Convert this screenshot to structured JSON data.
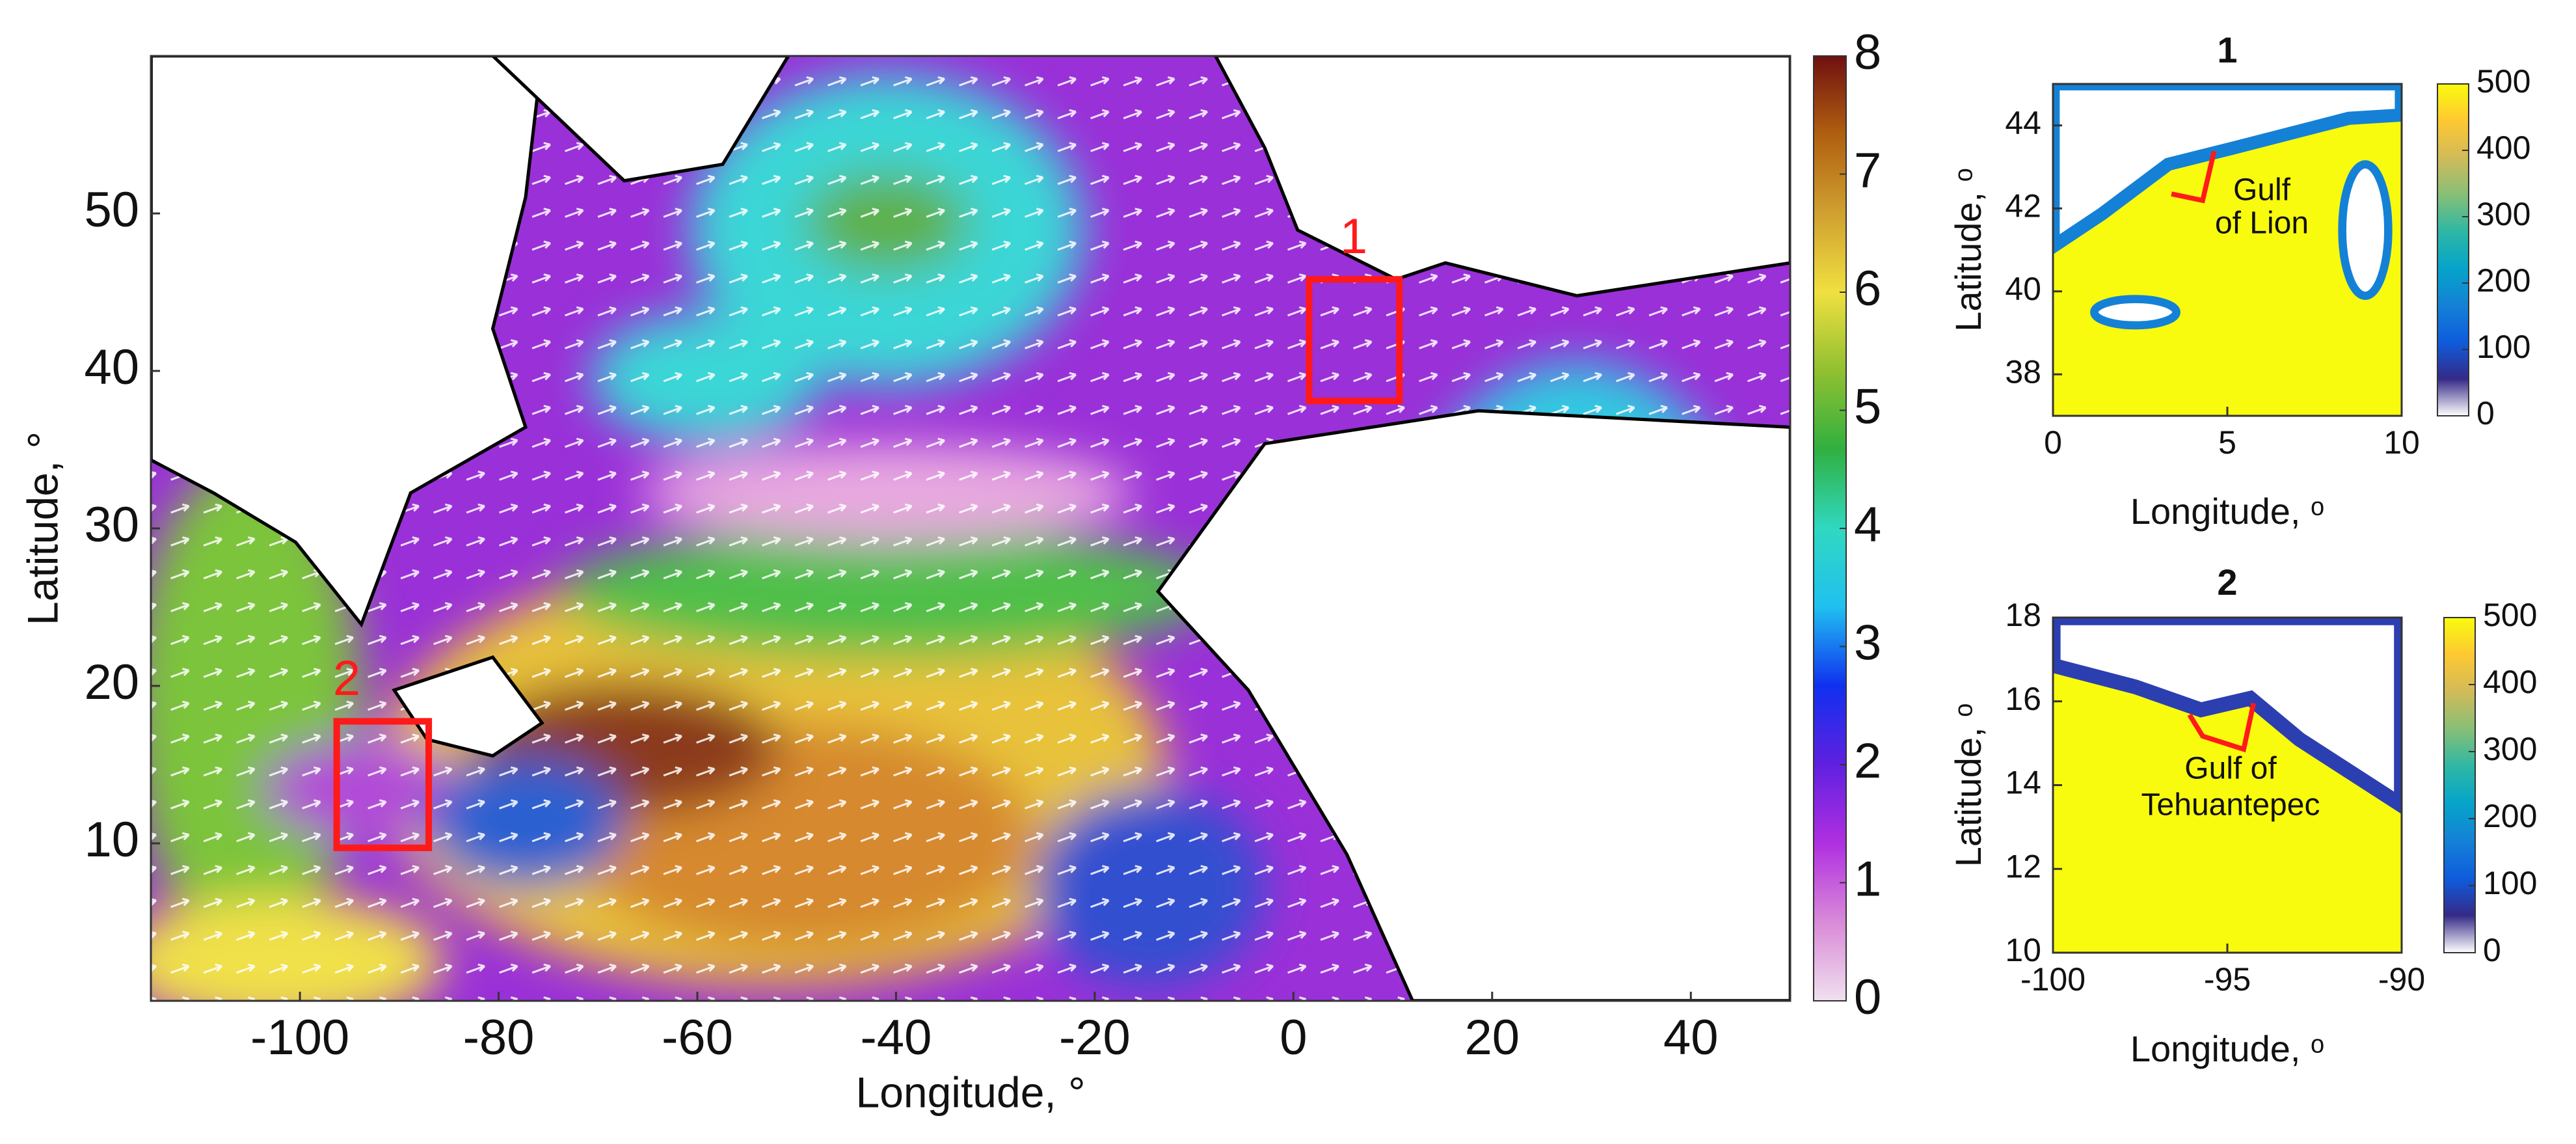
{
  "chart_data": [
    {
      "type": "map",
      "xlabel": "Longitude, °",
      "ylabel": "Latitude, °",
      "xlim": [
        -115,
        50
      ],
      "ylim": [
        0,
        60
      ],
      "xticks": [
        -100,
        -80,
        -60,
        -40,
        -20,
        0,
        20,
        40
      ],
      "yticks": [
        10,
        20,
        30,
        40,
        50
      ],
      "colorbar": {
        "lim": [
          0,
          8
        ],
        "ticks": [
          0,
          1,
          2,
          3,
          4,
          5,
          6,
          7,
          8
        ],
        "colors": [
          "#f0e0ee",
          "#d98ad8",
          "#b030e0",
          "#6020e0",
          "#1030f0",
          "#20c0f0",
          "#30d8c0",
          "#30b040",
          "#90c030",
          "#f0e040",
          "#d0a030",
          "#b06010",
          "#701010"
        ]
      },
      "annotations": [
        "1",
        "2"
      ]
    },
    {
      "type": "map",
      "title": "1",
      "xlabel": "Longitude, ᵒ",
      "ylabel": "Latitude, ᵒ",
      "xlim": [
        0,
        10
      ],
      "ylim": [
        37,
        45
      ],
      "xticks": [
        0,
        5,
        10
      ],
      "yticks": [
        38,
        40,
        42,
        44
      ],
      "colorbar": {
        "lim": [
          0,
          500
        ],
        "ticks": [
          0,
          100,
          200,
          300,
          400,
          500
        ],
        "colors": [
          "#ffffff",
          "#352a87",
          "#0f5cdd",
          "#1481d6",
          "#06a4ca",
          "#2eb7a4",
          "#87bf77",
          "#d1bb59",
          "#fec832",
          "#f9fb0e"
        ]
      },
      "annotations": [
        [
          "Gulf",
          "of Lion"
        ]
      ]
    },
    {
      "type": "map",
      "title": "2",
      "xlabel": "Longitude, ᵒ",
      "ylabel": "Latitude, ᵒ",
      "xlim": [
        -100,
        -90
      ],
      "ylim": [
        10,
        18
      ],
      "xticks": [
        -100,
        -95,
        -90
      ],
      "yticks": [
        10,
        12,
        14,
        16,
        18
      ],
      "colorbar": {
        "lim": [
          0,
          500
        ],
        "ticks": [
          0,
          100,
          200,
          300,
          400,
          500
        ],
        "colors": [
          "#ffffff",
          "#352a87",
          "#0f5cdd",
          "#1481d6",
          "#06a4ca",
          "#2eb7a4",
          "#87bf77",
          "#d1bb59",
          "#fec832",
          "#f9fb0e"
        ]
      },
      "annotations": [
        [
          "Gulf of",
          "Tehuantepec"
        ]
      ]
    }
  ]
}
